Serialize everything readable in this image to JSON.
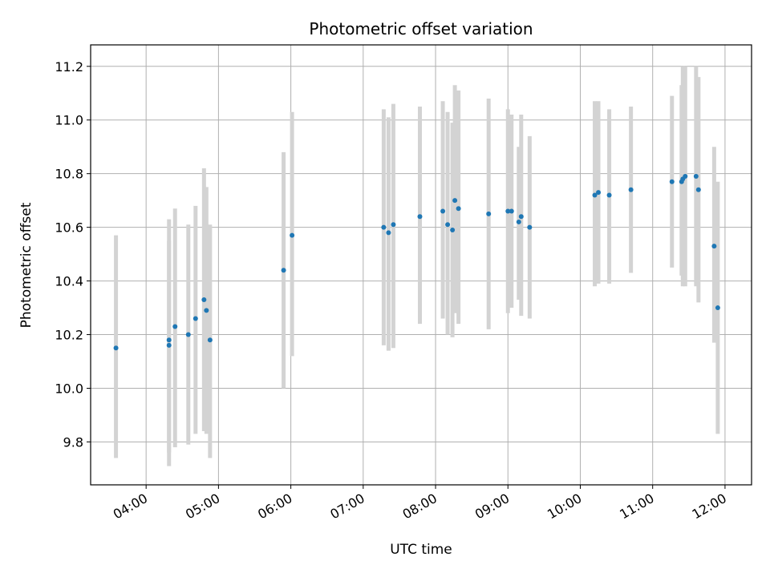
{
  "chart_data": {
    "type": "scatter",
    "title": "Photometric offset variation",
    "xlabel": "UTC time",
    "ylabel": "Photometric offset",
    "x_tick_labels": [
      "04:00",
      "05:00",
      "06:00",
      "07:00",
      "08:00",
      "09:00",
      "10:00",
      "11:00",
      "12:00"
    ],
    "x_tick_hours": [
      4,
      5,
      6,
      7,
      8,
      9,
      10,
      11,
      12
    ],
    "y_ticks": [
      9.8,
      10.0,
      10.2,
      10.4,
      10.6,
      10.8,
      11.0,
      11.2
    ],
    "y_tick_labels": [
      "9.8",
      "10.0",
      "10.2",
      "10.4",
      "10.6",
      "10.8",
      "11.0",
      "11.2"
    ],
    "xlim": [
      "03:14",
      "12:22"
    ],
    "ylim": [
      9.64,
      11.28
    ],
    "grid": true,
    "point_color": "#1f77b4",
    "errorbar_color": "#d3d3d3",
    "points": [
      {
        "t": "03:35",
        "y": 10.15,
        "lo": 9.74,
        "hi": 10.57
      },
      {
        "t": "04:19",
        "y": 10.16,
        "lo": 9.71,
        "hi": 10.63
      },
      {
        "t": "04:19",
        "y": 10.18,
        "lo": 9.76,
        "hi": 10.55
      },
      {
        "t": "04:24",
        "y": 10.23,
        "lo": 9.78,
        "hi": 10.67
      },
      {
        "t": "04:35",
        "y": 10.2,
        "lo": 9.79,
        "hi": 10.61
      },
      {
        "t": "04:41",
        "y": 10.26,
        "lo": 9.83,
        "hi": 10.68
      },
      {
        "t": "04:48",
        "y": 10.33,
        "lo": 9.84,
        "hi": 10.82
      },
      {
        "t": "04:50",
        "y": 10.29,
        "lo": 9.83,
        "hi": 10.75
      },
      {
        "t": "04:53",
        "y": 10.18,
        "lo": 9.74,
        "hi": 10.61
      },
      {
        "t": "05:54",
        "y": 10.44,
        "lo": 10.0,
        "hi": 10.88
      },
      {
        "t": "06:01",
        "y": 10.57,
        "lo": 10.12,
        "hi": 11.03
      },
      {
        "t": "07:17",
        "y": 10.6,
        "lo": 10.16,
        "hi": 11.04
      },
      {
        "t": "07:21",
        "y": 10.58,
        "lo": 10.14,
        "hi": 11.01
      },
      {
        "t": "07:25",
        "y": 10.61,
        "lo": 10.15,
        "hi": 11.06
      },
      {
        "t": "07:47",
        "y": 10.64,
        "lo": 10.24,
        "hi": 11.05
      },
      {
        "t": "08:06",
        "y": 10.66,
        "lo": 10.26,
        "hi": 11.07
      },
      {
        "t": "08:10",
        "y": 10.61,
        "lo": 10.2,
        "hi": 11.03
      },
      {
        "t": "08:14",
        "y": 10.59,
        "lo": 10.19,
        "hi": 10.99
      },
      {
        "t": "08:16",
        "y": 10.7,
        "lo": 10.28,
        "hi": 11.13
      },
      {
        "t": "08:19",
        "y": 10.67,
        "lo": 10.24,
        "hi": 11.11
      },
      {
        "t": "08:44",
        "y": 10.65,
        "lo": 10.22,
        "hi": 11.08
      },
      {
        "t": "09:00",
        "y": 10.66,
        "lo": 10.28,
        "hi": 11.04
      },
      {
        "t": "09:03",
        "y": 10.66,
        "lo": 10.3,
        "hi": 11.02
      },
      {
        "t": "09:09",
        "y": 10.62,
        "lo": 10.33,
        "hi": 10.9
      },
      {
        "t": "09:11",
        "y": 10.64,
        "lo": 10.27,
        "hi": 11.02
      },
      {
        "t": "09:18",
        "y": 10.6,
        "lo": 10.26,
        "hi": 10.94
      },
      {
        "t": "10:12",
        "y": 10.72,
        "lo": 10.38,
        "hi": 11.07
      },
      {
        "t": "10:15",
        "y": 10.73,
        "lo": 10.39,
        "hi": 11.07
      },
      {
        "t": "10:24",
        "y": 10.72,
        "lo": 10.39,
        "hi": 11.04
      },
      {
        "t": "10:42",
        "y": 10.74,
        "lo": 10.43,
        "hi": 11.05
      },
      {
        "t": "11:16",
        "y": 10.77,
        "lo": 10.45,
        "hi": 11.09
      },
      {
        "t": "11:24",
        "y": 10.77,
        "lo": 10.42,
        "hi": 11.13
      },
      {
        "t": "11:25",
        "y": 10.78,
        "lo": 10.38,
        "hi": 11.2
      },
      {
        "t": "11:27",
        "y": 10.79,
        "lo": 10.38,
        "hi": 11.2
      },
      {
        "t": "11:36",
        "y": 10.79,
        "lo": 10.38,
        "hi": 11.2
      },
      {
        "t": "11:38",
        "y": 10.74,
        "lo": 10.32,
        "hi": 11.16
      },
      {
        "t": "11:51",
        "y": 10.53,
        "lo": 10.17,
        "hi": 10.9
      },
      {
        "t": "11:54",
        "y": 10.3,
        "lo": 9.83,
        "hi": 10.77
      }
    ]
  }
}
